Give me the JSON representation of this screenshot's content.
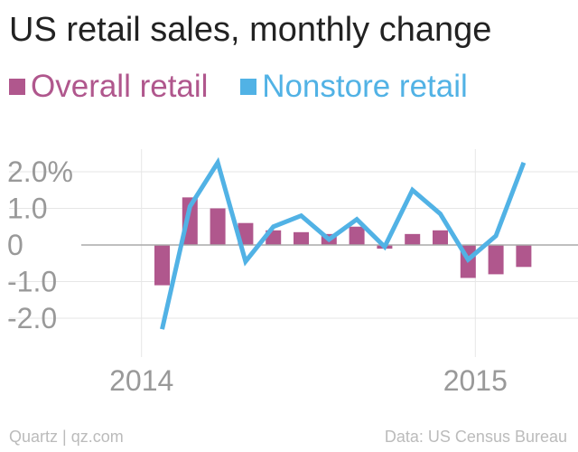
{
  "chart_data": {
    "type": "bar",
    "title": "US retail sales, monthly change",
    "xlabel": "",
    "ylabel": "",
    "ylim": [
      -2.5,
      2.5
    ],
    "y_ticks": [
      {
        "value": 2.0,
        "label": "2.0%"
      },
      {
        "value": 1.0,
        "label": "1.0"
      },
      {
        "value": 0,
        "label": "0"
      },
      {
        "value": -1.0,
        "label": "-1.0"
      },
      {
        "value": -2.0,
        "label": "-2.0"
      }
    ],
    "x_ticks": [
      {
        "index": -0.5,
        "label": "2014"
      },
      {
        "index": 11.5,
        "label": "2015"
      }
    ],
    "grid": true,
    "legend_position": "top-left",
    "series": [
      {
        "name": "Overall retail",
        "type": "bar",
        "color": "#b0578d",
        "values": [
          -1.1,
          1.3,
          1.0,
          0.6,
          0.4,
          0.35,
          0.3,
          0.5,
          -0.1,
          0.3,
          0.4,
          -0.9,
          -0.8,
          -0.6
        ]
      },
      {
        "name": "Nonstore retail",
        "type": "line",
        "color": "#51b2e5",
        "values": [
          -2.3,
          1.05,
          2.25,
          -0.45,
          0.5,
          0.8,
          0.15,
          0.7,
          -0.05,
          1.5,
          0.85,
          -0.4,
          0.25,
          2.25
        ]
      }
    ]
  },
  "footer": {
    "source_left": "Quartz | qz.com",
    "source_right": "Data: US Census Bureau"
  }
}
